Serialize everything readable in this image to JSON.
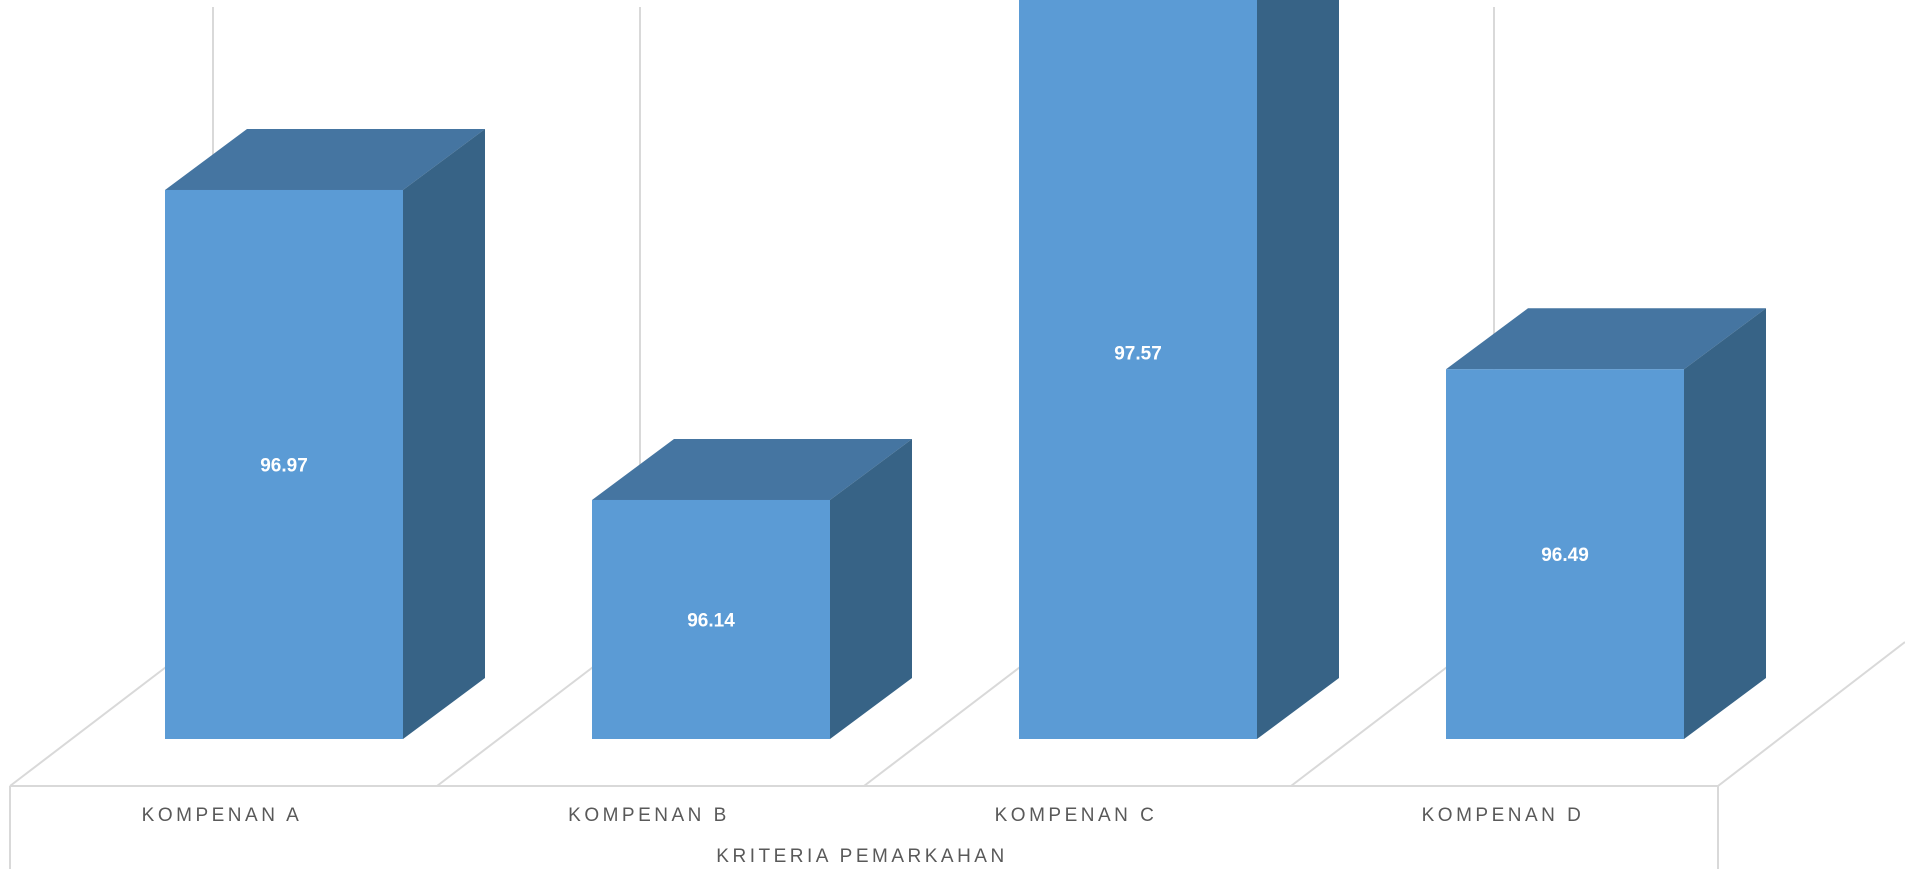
{
  "chart_data": {
    "type": "bar",
    "style": "3d-column",
    "categories": [
      "KOMPENAN A",
      "KOMPENAN B",
      "KOMPENAN C",
      "KOMPENAN D"
    ],
    "values": [
      96.97,
      96.14,
      97.57,
      96.49
    ],
    "data_labels": [
      "96.97",
      "96.14",
      "97.57",
      "96.49"
    ],
    "xlabel": "KRITERIA PEMARKAHAN",
    "ylabel": "",
    "title": "",
    "ylim": [
      95.5,
      98
    ],
    "grid": true,
    "legend": "none",
    "colors": {
      "front": "#5b9bd5",
      "top": "#4575a1",
      "side": "#376386",
      "grid": "#d9d9d9",
      "text": "#595959"
    }
  }
}
